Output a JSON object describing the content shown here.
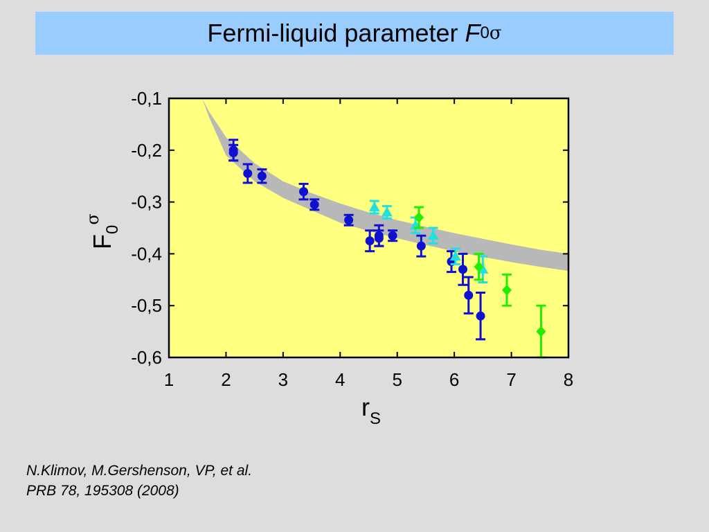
{
  "slide": {
    "title_text": "Fermi-liquid parameter ",
    "title_symbol": "F",
    "title_sub": "0",
    "title_sup": "σ",
    "citation_line1": "N.Klimov, M.Gershenson, VP, et al.",
    "citation_line2": "PRB 78, 195308 (2008)"
  },
  "colors": {
    "title_bg": "#99ccff",
    "plot_bg": "#ffff80",
    "band": "#b8b8b8",
    "blue": "#1010d0",
    "cyan": "#22e0e0",
    "green": "#22ee00"
  },
  "chart_data": {
    "type": "scatter",
    "title": "",
    "xlabel_main": "r",
    "xlabel_sub": "S",
    "ylabel_main": "F",
    "ylabel_sub": "0",
    "ylabel_sup": "σ",
    "xlim": [
      1,
      8
    ],
    "ylim": [
      -0.6,
      -0.1
    ],
    "x_ticks": [
      1,
      2,
      3,
      4,
      5,
      6,
      7,
      8
    ],
    "x_tick_labels": [
      "1",
      "2",
      "3",
      "4",
      "5",
      "6",
      "7",
      "8"
    ],
    "y_ticks": [
      -0.1,
      -0.2,
      -0.3,
      -0.4,
      -0.5,
      -0.6
    ],
    "y_tick_labels": [
      "-0,1",
      "-0,2",
      "-0,3",
      "-0,4",
      "-0,5",
      "-0,6"
    ],
    "band": {
      "x": [
        1.58,
        1.7,
        2.0,
        2.5,
        3.0,
        3.5,
        4.0,
        4.5,
        5.0,
        5.5,
        6.0,
        6.5,
        7.0,
        7.5,
        8.0
      ],
      "upper": [
        -0.1,
        -0.125,
        -0.175,
        -0.225,
        -0.26,
        -0.283,
        -0.303,
        -0.32,
        -0.335,
        -0.348,
        -0.36,
        -0.371,
        -0.382,
        -0.392,
        -0.4
      ],
      "lower": [
        -0.1,
        -0.135,
        -0.21,
        -0.26,
        -0.292,
        -0.316,
        -0.34,
        -0.356,
        -0.37,
        -0.383,
        -0.395,
        -0.406,
        -0.416,
        -0.425,
        -0.433
      ]
    },
    "series": [
      {
        "marker": "circle",
        "color": "#1010d0",
        "points": [
          {
            "x": 2.13,
            "y": -0.2,
            "err": 0.02
          },
          {
            "x": 2.13,
            "y": -0.205,
            "err": 0.015
          },
          {
            "x": 2.38,
            "y": -0.245,
            "err": 0.018
          },
          {
            "x": 2.63,
            "y": -0.25,
            "err": 0.013
          },
          {
            "x": 3.36,
            "y": -0.28,
            "err": 0.015
          },
          {
            "x": 3.55,
            "y": -0.305,
            "err": 0.01
          },
          {
            "x": 4.15,
            "y": -0.335,
            "err": 0.01
          },
          {
            "x": 4.52,
            "y": -0.375,
            "err": 0.02
          },
          {
            "x": 4.68,
            "y": -0.365,
            "err": 0.02
          },
          {
            "x": 4.68,
            "y": -0.37,
            "err": 0.015
          },
          {
            "x": 4.92,
            "y": -0.365,
            "err": 0.01
          },
          {
            "x": 5.42,
            "y": -0.385,
            "err": 0.02
          },
          {
            "x": 5.95,
            "y": -0.415,
            "err": 0.02
          },
          {
            "x": 6.15,
            "y": -0.43,
            "err": 0.03
          },
          {
            "x": 6.25,
            "y": -0.48,
            "err": 0.035
          },
          {
            "x": 6.46,
            "y": -0.52,
            "err": 0.045
          }
        ]
      },
      {
        "marker": "triangle",
        "color": "#22e0e0",
        "points": [
          {
            "x": 4.6,
            "y": -0.31,
            "err": 0.012
          },
          {
            "x": 4.82,
            "y": -0.32,
            "err": 0.012
          },
          {
            "x": 5.32,
            "y": -0.345,
            "err": 0.015
          },
          {
            "x": 5.63,
            "y": -0.365,
            "err": 0.015
          },
          {
            "x": 6.02,
            "y": -0.405,
            "err": 0.015
          },
          {
            "x": 6.5,
            "y": -0.43,
            "err": 0.025
          }
        ]
      },
      {
        "marker": "diamond",
        "color": "#22ee00",
        "points": [
          {
            "x": 5.38,
            "y": -0.33,
            "err": 0.02
          },
          {
            "x": 6.43,
            "y": -0.425,
            "err": 0.025
          },
          {
            "x": 6.92,
            "y": -0.47,
            "err": 0.03
          },
          {
            "x": 7.52,
            "y": -0.55,
            "err": 0.05
          }
        ]
      }
    ]
  }
}
